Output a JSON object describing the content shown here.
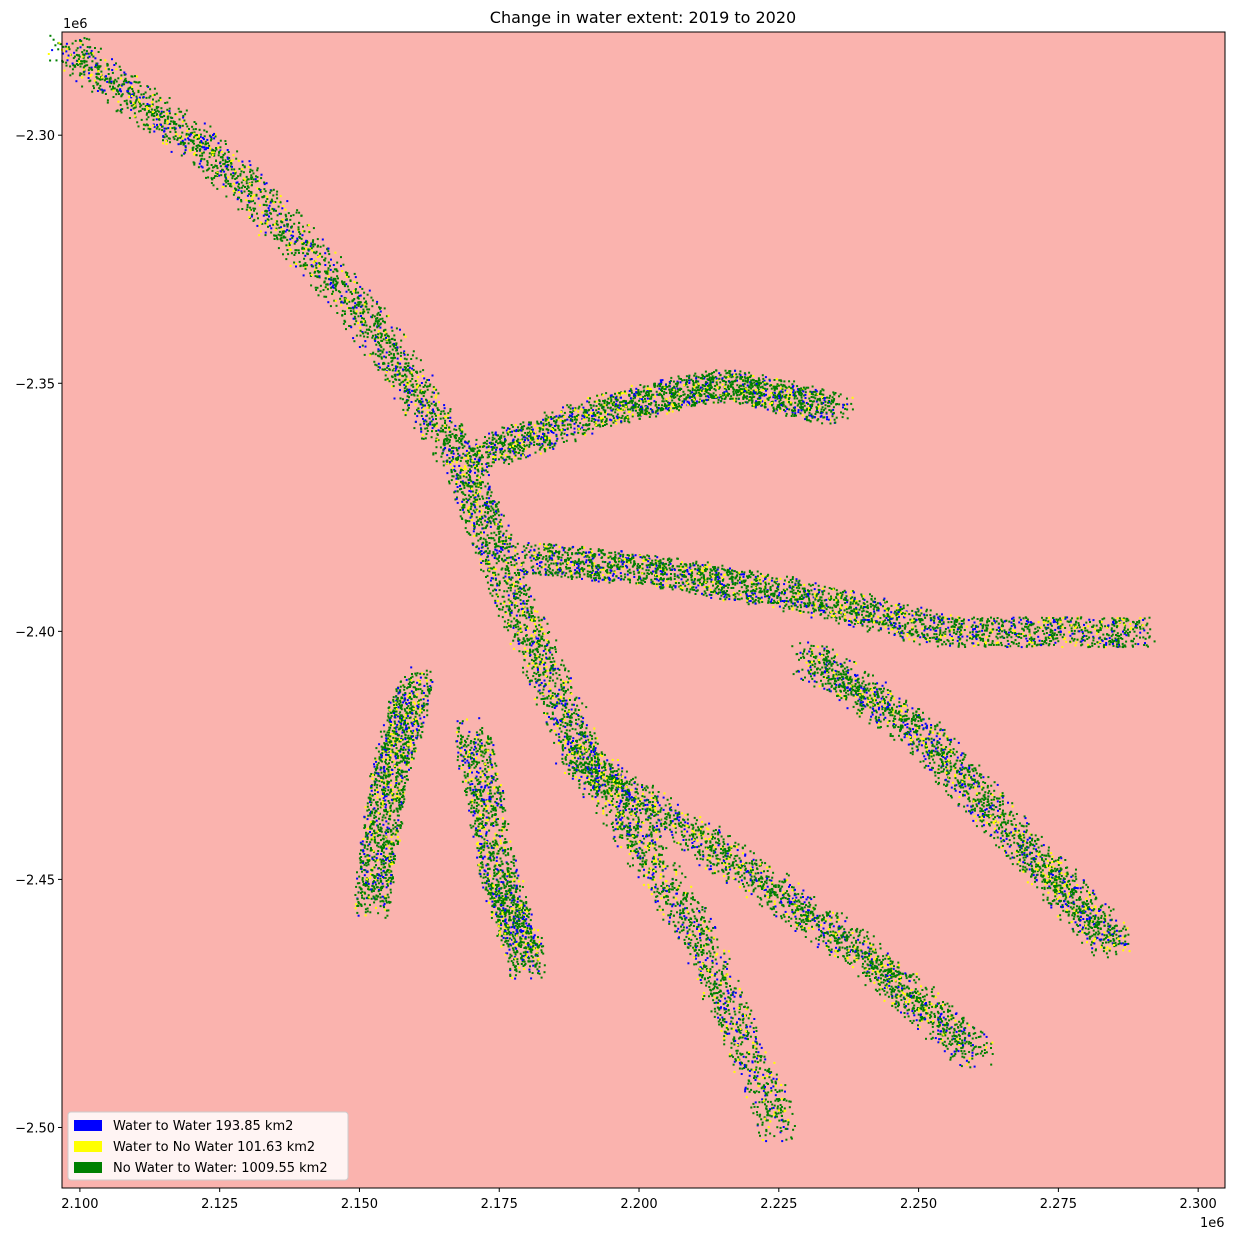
{
  "chart_data": {
    "type": "heatmap",
    "title": "Change in water extent: 2019 to 2020",
    "xlabel": "",
    "ylabel": "",
    "x_offset_label": "1e6",
    "y_offset_label": "1e6",
    "xlim": [
      2.0968,
      2.3048
    ],
    "ylim": [
      -2.5122,
      -2.2792
    ],
    "xticks": [
      {
        "value": 2.1,
        "label": "2.100"
      },
      {
        "value": 2.125,
        "label": "2.125"
      },
      {
        "value": 2.15,
        "label": "2.150"
      },
      {
        "value": 2.175,
        "label": "2.175"
      },
      {
        "value": 2.2,
        "label": "2.200"
      },
      {
        "value": 2.225,
        "label": "2.225"
      },
      {
        "value": 2.25,
        "label": "2.250"
      },
      {
        "value": 2.275,
        "label": "2.275"
      },
      {
        "value": 2.3,
        "label": "2.300"
      }
    ],
    "yticks": [
      {
        "value": -2.3,
        "label": "−2.30"
      },
      {
        "value": -2.35,
        "label": "−2.35"
      },
      {
        "value": -2.4,
        "label": "−2.40"
      },
      {
        "value": -2.45,
        "label": "−2.45"
      },
      {
        "value": -2.5,
        "label": "−2.50"
      }
    ],
    "grid": false,
    "legend_position": "lower-left",
    "background_color": "#fab3ae",
    "legend": [
      {
        "label": "Water to Water 193.85 km2",
        "color": "#0000ff",
        "area_km2": 193.85
      },
      {
        "label": "Water to No Water 101.63 km2",
        "color": "#ffff00",
        "area_km2": 101.63
      },
      {
        "label": "No Water to Water: 1009.55 km2",
        "color": "#008000",
        "area_km2": 1009.55
      }
    ]
  }
}
